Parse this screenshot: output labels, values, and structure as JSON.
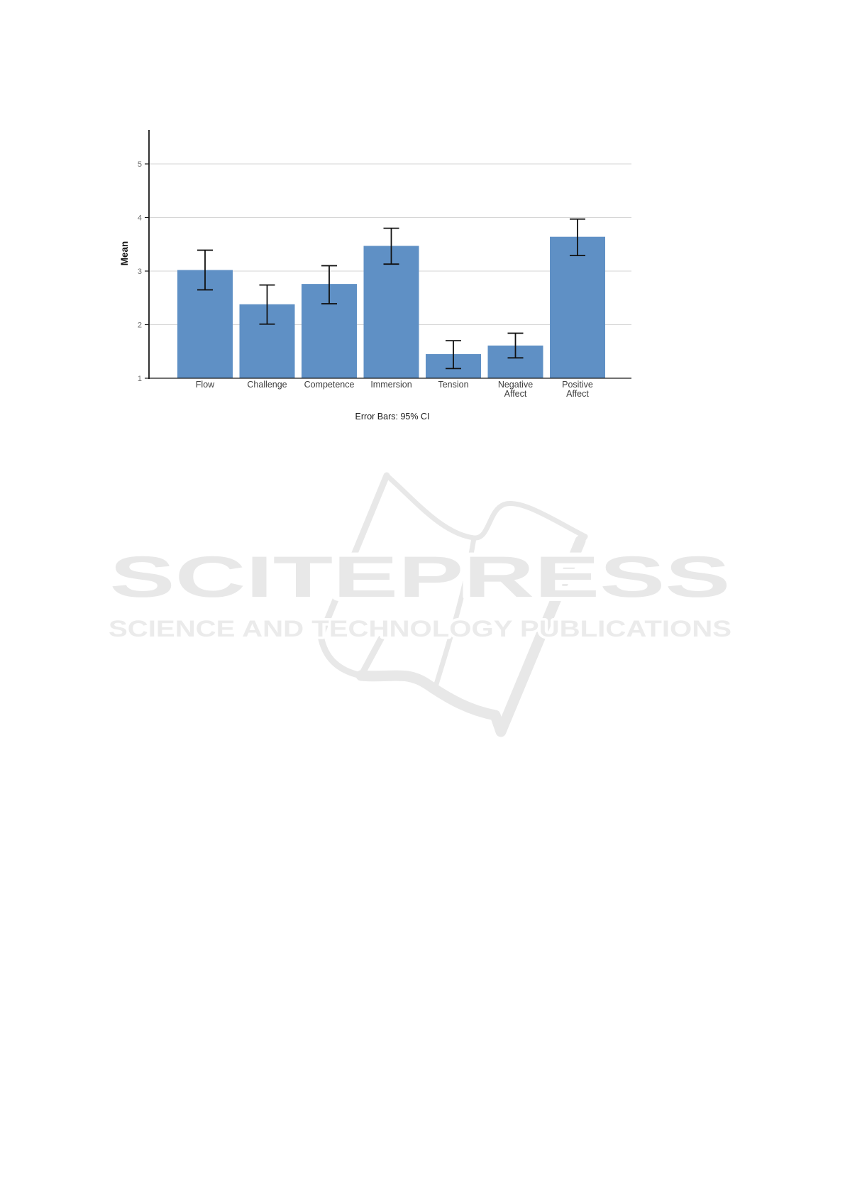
{
  "page": {
    "background": "#ffffff"
  },
  "chart_data": {
    "type": "bar",
    "title": "",
    "ylabel": "Mean",
    "xlabel": "",
    "caption": "Error Bars: 95% CI",
    "error_bars": "95% CI",
    "ylim": [
      1,
      5
    ],
    "yticks": [
      1,
      2,
      3,
      4,
      5
    ],
    "grid": true,
    "legend_position": "none",
    "categories": [
      "Flow",
      "Challenge",
      "Competence",
      "Immersion",
      "Tension",
      "Negative Affect",
      "Positive Affect"
    ],
    "values": [
      3.02,
      2.38,
      2.76,
      3.47,
      1.45,
      1.61,
      3.64
    ],
    "ci_low": [
      2.65,
      2.01,
      2.39,
      3.13,
      1.18,
      1.38,
      3.29
    ],
    "ci_high": [
      3.39,
      2.74,
      3.1,
      3.8,
      1.7,
      1.84,
      3.97
    ],
    "colors": {
      "bar": "#5F90C5",
      "grid": "#d6d6d6",
      "axis": "#1a1a1a",
      "error_bar": "#111111",
      "tick_label": "#707070",
      "category_label": "#3d3d3d",
      "caption_text": "#1a1a1a"
    }
  },
  "watermark": {
    "wordmark": "SCITEPRESS",
    "tagline": "SCIENCE AND TECHNOLOGY PUBLICATIONS",
    "color": "#e8e8e8",
    "tagline_color": "#ebebeb"
  }
}
